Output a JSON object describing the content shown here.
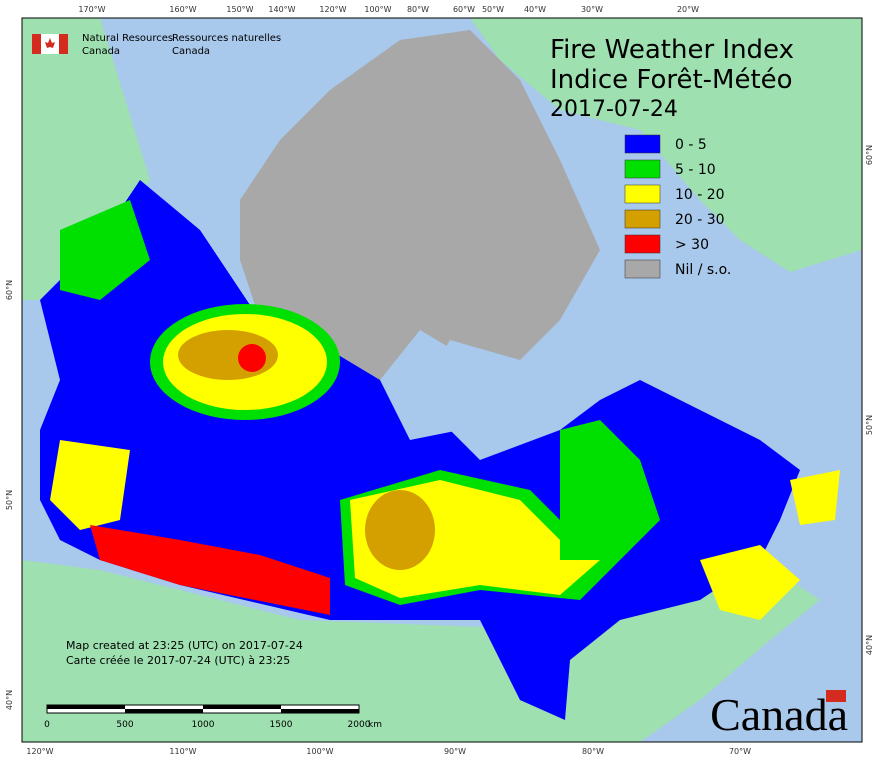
{
  "header": {
    "agency_en": [
      "Natural Resources",
      "Canada"
    ],
    "agency_fr": [
      "Ressources naturelles",
      "Canada"
    ]
  },
  "title": {
    "line1": "Fire Weather Index",
    "line2": "Indice Forêt-Météo",
    "date": "2017-07-24"
  },
  "legend": [
    {
      "label": "0 - 5",
      "color": "#0000ff"
    },
    {
      "label": "5 - 10",
      "color": "#00e000"
    },
    {
      "label": "10 - 20",
      "color": "#ffff00"
    },
    {
      "label": "20 - 30",
      "color": "#d4a000"
    },
    {
      "label": "> 30",
      "color": "#ff0000"
    },
    {
      "label": "Nil / s.o.",
      "color": "#a8a8a8"
    }
  ],
  "graticule": {
    "top": [
      "170°W",
      "160°W",
      "150°W",
      "140°W",
      "120°W",
      "100°W",
      "80°W",
      "60°W",
      "50°W",
      "40°W",
      "30°W",
      "20°W"
    ],
    "bottom": [
      "120°W",
      "110°W",
      "100°W",
      "90°W",
      "80°W",
      "70°W"
    ],
    "left": [
      "60°N",
      "50°N",
      "40°N"
    ],
    "right": [
      "60°N",
      "50°N",
      "40°N"
    ]
  },
  "notes": [
    "Map created at 23:25 (UTC) on 2017-07-24",
    "Carte créée le 2017-07-24 (UTC) à 23:25"
  ],
  "scale_bar": {
    "labels": [
      "0",
      "500",
      "1000",
      "1500",
      "2000"
    ],
    "unit": "km"
  },
  "wordmark": "Canada"
}
